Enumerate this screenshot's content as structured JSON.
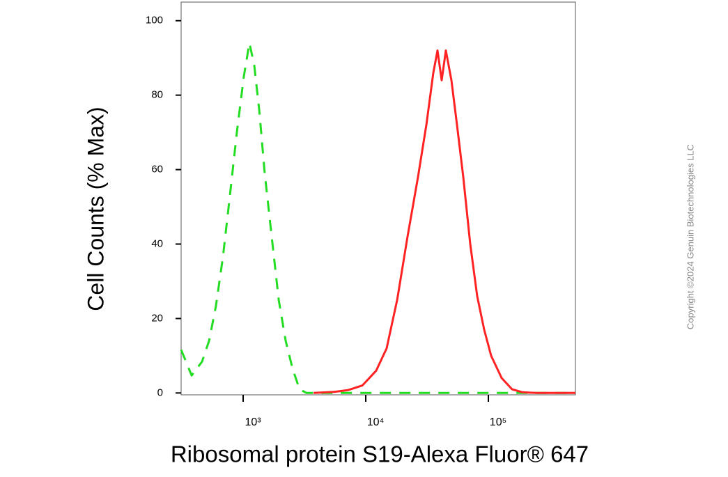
{
  "chart_data": {
    "type": "line",
    "xlabel": "Ribosomal protein S19-Alexa Fluor® 647",
    "ylabel": "Cell Counts (% Max)",
    "xscale": "log",
    "xlim": [
      312,
      513000
    ],
    "ylim": [
      -0.5,
      105
    ],
    "xticks": [
      {
        "value": 1000,
        "label": "10³"
      },
      {
        "value": 10000,
        "label": "10⁴"
      },
      {
        "value": 100000,
        "label": "10⁵"
      }
    ],
    "yticks": [
      0,
      20,
      40,
      60,
      80,
      100
    ],
    "series": [
      {
        "color": "#22dd22",
        "dash": true,
        "x": [
          312,
          380,
          462,
          527,
          600,
          684,
          780,
          889,
          1013,
          1125,
          1233,
          1352,
          1500,
          1710,
          1950,
          2222,
          2530,
          2884,
          3289,
          26670,
          513000
        ],
        "values": [
          11.6,
          4.7,
          8.4,
          14,
          23.4,
          36.5,
          53,
          70,
          85,
          94,
          88,
          76,
          59,
          42,
          25,
          14,
          6.5,
          1,
          0,
          0,
          0
        ]
      },
      {
        "color": "#ff2222",
        "dash": false,
        "x": [
          3750,
          5545,
          7206,
          9370,
          12170,
          14800,
          18030,
          21930,
          26670,
          31190,
          35560,
          38460,
          41590,
          44980,
          49970,
          55460,
          62390,
          71120,
          81100,
          92470,
          105400,
          128300,
          156000,
          189700,
          246600,
          513000
        ],
        "values": [
          0,
          0.3,
          0.8,
          2,
          6,
          12,
          25,
          42,
          58,
          72,
          86,
          92,
          84,
          92,
          84,
          72,
          58,
          40,
          26,
          17,
          10,
          4,
          1,
          0.2,
          0,
          0
        ]
      }
    ]
  },
  "watermark": "Copyright ©2024 Genuin Biotechnologies LLC"
}
